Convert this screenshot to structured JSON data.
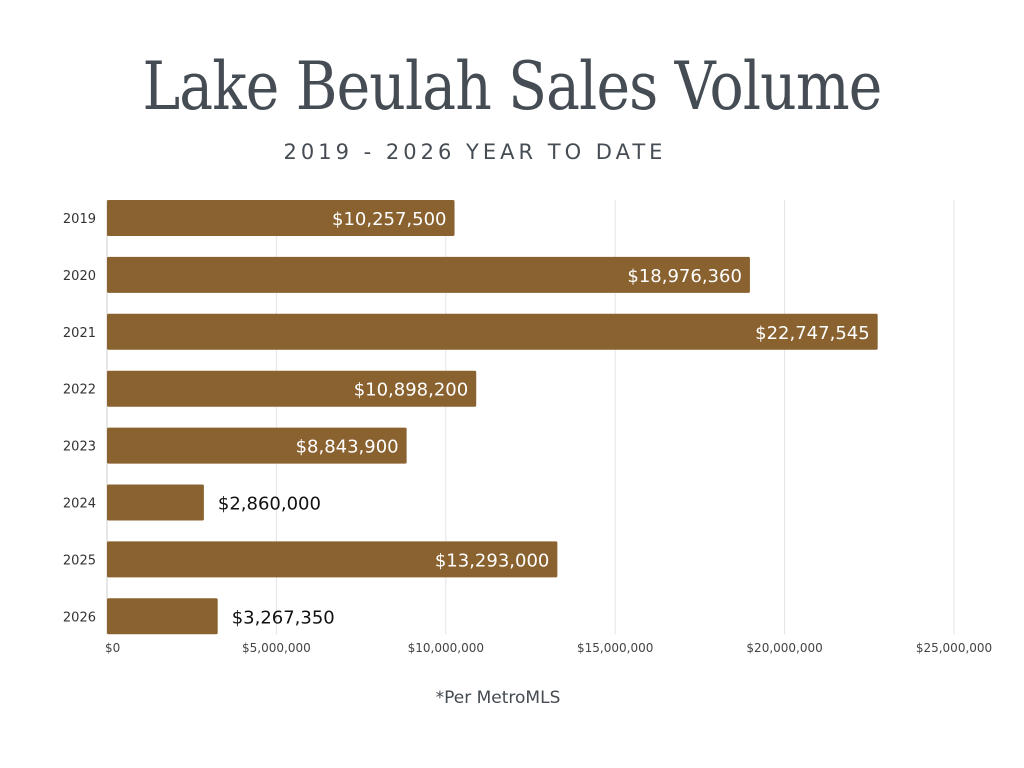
{
  "chart_data": {
    "type": "bar",
    "orientation": "horizontal",
    "title": "Lake Beulah Sales Volume",
    "subtitle": "2019 - 2026 YEAR TO DATE",
    "categories": [
      "2019",
      "2020",
      "2021",
      "2022",
      "2023",
      "2024",
      "2025",
      "2026"
    ],
    "values": [
      10257500,
      18976360,
      22747545,
      10898200,
      8843900,
      2860000,
      13293000,
      3267350
    ],
    "data_labels": [
      "$10,257,500",
      "$18,976,360",
      "$22,747,545",
      "$10,898,200",
      "$8,843,900",
      "$2,860,000",
      "$13,293,000",
      "$3,267,350"
    ],
    "xlim": [
      0,
      25000000
    ],
    "x_ticks": [
      0,
      5000000,
      10000000,
      15000000,
      20000000,
      25000000
    ],
    "x_tick_labels": [
      "$0",
      "$5,000,000",
      "$10,000,000",
      "$15,000,000",
      "$20,000,000",
      "$25,000,000"
    ],
    "xlabel": "",
    "ylabel": "",
    "grid": "vertical",
    "legend": "none",
    "bar_color": "#8a6230",
    "footnote": "*Per MetroMLS"
  }
}
